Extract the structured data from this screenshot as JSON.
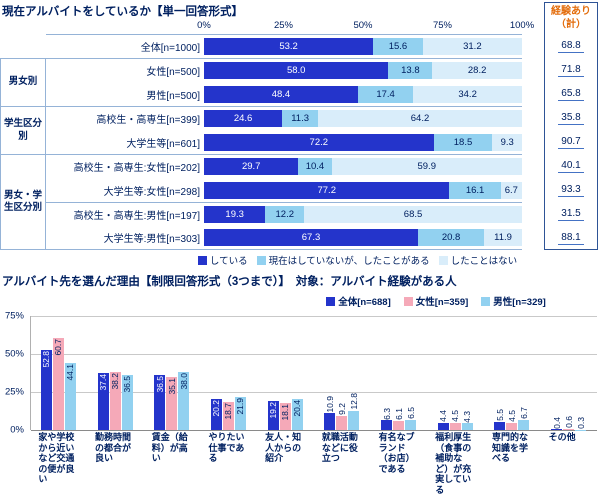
{
  "colors": {
    "navy_text": "#002060",
    "orange_header": "#e36c0a",
    "table_line": "#95b3d7",
    "series_doing": "#2434cb",
    "series_did_before": "#92d1f0",
    "series_never": "#d9edfa",
    "series_female_pink": "#f5a9b8",
    "gridline": "#c9c9c9"
  },
  "chart_data": [
    {
      "type": "bar",
      "orientation": "horizontal-stacked",
      "title": "現在アルバイトをしているか【単一回答形式】",
      "x_ticks": [
        "0%",
        "25%",
        "50%",
        "75%",
        "100%"
      ],
      "xlim": [
        0,
        100
      ],
      "grid": false,
      "legend_position": "bottom",
      "series_labels": [
        "している",
        "現在はしていないが、したことがある",
        "したことはない"
      ],
      "series_colors": [
        "#2434cb",
        "#92d1f0",
        "#d9edfa"
      ],
      "total_column_header": "経験あり（計）",
      "groups": [
        {
          "label": "",
          "rows": [
            {
              "label": "全体[n=1000]",
              "values": [
                53.2,
                15.6,
                31.2
              ],
              "total": 68.8
            }
          ]
        },
        {
          "label": "男女別",
          "rows": [
            {
              "label": "女性[n=500]",
              "values": [
                58.0,
                13.8,
                28.2
              ],
              "total": 71.8
            },
            {
              "label": "男性[n=500]",
              "values": [
                48.4,
                17.4,
                34.2
              ],
              "total": 65.8
            }
          ]
        },
        {
          "label": "学生区分別",
          "rows": [
            {
              "label": "高校生・高専生[n=399]",
              "values": [
                24.6,
                11.3,
                64.2
              ],
              "total": 35.8
            },
            {
              "label": "大学生等[n=601]",
              "values": [
                72.2,
                18.5,
                9.3
              ],
              "total": 90.7
            }
          ]
        },
        {
          "label": "男女・学生区分別",
          "sub_divider_rows": [
            2
          ],
          "rows": [
            {
              "label": "高校生・高専生:女性[n=202]",
              "values": [
                29.7,
                10.4,
                59.9
              ],
              "total": 40.1
            },
            {
              "label": "大学生等:女性[n=298]",
              "values": [
                77.2,
                16.1,
                6.7
              ],
              "total": 93.3
            },
            {
              "label": "高校生・高専生:男性[n=197]",
              "values": [
                19.3,
                12.2,
                68.5
              ],
              "total": 31.5
            },
            {
              "label": "大学生等:男性[n=303]",
              "values": [
                67.3,
                20.8,
                11.9
              ],
              "total": 88.1
            }
          ]
        }
      ]
    },
    {
      "type": "bar",
      "orientation": "vertical-grouped",
      "title": "アルバイト先を選んだ理由【制限回答形式（3つまで）】　対象：アルバイト経験がある人",
      "ylim": [
        0,
        75
      ],
      "y_ticks": [
        "75%",
        "50%",
        "25%",
        "0%"
      ],
      "grid": true,
      "legend_position": "top",
      "categories": [
        "家や学校から近いなど交通の便が良い",
        "勤務時間の都合が良い",
        "賃金（給料）が高い",
        "やりたい仕事である",
        "友人・知人からの紹介",
        "就職活動などに役立つ",
        "有名なブランド（お店）である",
        "福利厚生（食事の補助など）が充実している",
        "専門的な知識を学べる",
        "その他"
      ],
      "series": [
        {
          "name": "全体[n=688]",
          "color": "#2434cb",
          "values": [
            52.8,
            37.4,
            36.5,
            20.2,
            19.2,
            10.9,
            6.3,
            4.4,
            5.5,
            0.4
          ]
        },
        {
          "name": "女性[n=359]",
          "color": "#f5a9b8",
          "values": [
            60.7,
            38.2,
            35.1,
            18.7,
            18.1,
            9.2,
            6.1,
            4.5,
            4.5,
            0.6
          ]
        },
        {
          "name": "男性[n=329]",
          "color": "#92d1f0",
          "values": [
            44.1,
            36.5,
            38.0,
            21.9,
            20.4,
            12.8,
            6.5,
            4.3,
            6.7,
            0.3
          ]
        }
      ]
    }
  ]
}
